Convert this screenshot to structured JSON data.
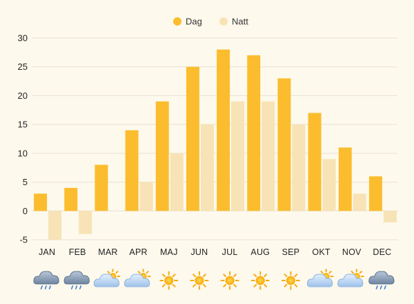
{
  "chart_data": {
    "type": "bar",
    "categories": [
      "JAN",
      "FEB",
      "MAR",
      "APR",
      "MAJ",
      "JUN",
      "JUL",
      "AUG",
      "SEP",
      "OKT",
      "NOV",
      "DEC"
    ],
    "series": [
      {
        "name": "Dag",
        "color": "#fbbd2e",
        "values": [
          3,
          4,
          8,
          14,
          19,
          25,
          28,
          27,
          23,
          17,
          11,
          6
        ]
      },
      {
        "name": "Natt",
        "color": "#f8e3b6",
        "values": [
          -5,
          -4,
          0,
          5,
          10,
          15,
          19,
          19,
          15,
          9,
          3,
          -2
        ]
      }
    ],
    "y_ticks": [
      30,
      25,
      20,
      15,
      10,
      5,
      0,
      -5
    ],
    "ylim": [
      -5,
      30
    ],
    "grid": true,
    "legend_position": "top-center",
    "weather_icons": [
      "rain-cloud-icon",
      "rain-cloud-icon",
      "partly-cloudy-icon",
      "partly-cloudy-icon",
      "sun-icon",
      "sun-icon",
      "sun-icon",
      "sun-icon",
      "sun-icon",
      "partly-cloudy-icon",
      "partly-cloudy-icon",
      "rain-cloud-icon"
    ]
  }
}
